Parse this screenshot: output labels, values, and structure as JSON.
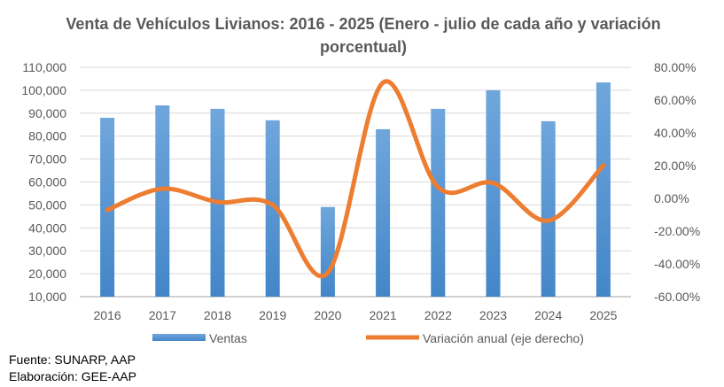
{
  "chart_data": {
    "type": "bar+line",
    "title": "Venta de Vehículos Livianos: 2016 - 2025 (Enero - julio de cada año y variación porcentual)",
    "categories": [
      "2016",
      "2017",
      "2018",
      "2019",
      "2020",
      "2021",
      "2022",
      "2023",
      "2024",
      "2025"
    ],
    "series": [
      {
        "name": "Ventas",
        "type": "bar",
        "axis": "left",
        "color": "#5B9BD5",
        "values": [
          88000,
          93400,
          91900,
          86900,
          49100,
          83000,
          91900,
          100000,
          86500,
          103400
        ]
      },
      {
        "name": "Variación anual (eje derecho)",
        "type": "line",
        "axis": "right",
        "color": "#ED7D31",
        "values": [
          -7.1,
          5.9,
          -2.2,
          -4.0,
          -45.4,
          70.6,
          6.8,
          9.4,
          -13.6,
          20.2
        ]
      }
    ],
    "y_left": {
      "min": 10000,
      "max": 110000,
      "step": 10000,
      "ticks": [
        "10,000",
        "20,000",
        "30,000",
        "40,000",
        "50,000",
        "60,000",
        "70,000",
        "80,000",
        "90,000",
        "100,000",
        "110,000"
      ]
    },
    "y_right": {
      "min": -60,
      "max": 80,
      "step": 20,
      "ticks": [
        "-60.00%",
        "-40.00%",
        "-20.00%",
        "0.00%",
        "20.00%",
        "40.00%",
        "60.00%",
        "80.00%"
      ]
    },
    "grid": true,
    "legend": "bottom"
  },
  "notes": {
    "source": "Fuente: SUNARP, AAP",
    "author": "Elaboración: GEE-AAP"
  }
}
